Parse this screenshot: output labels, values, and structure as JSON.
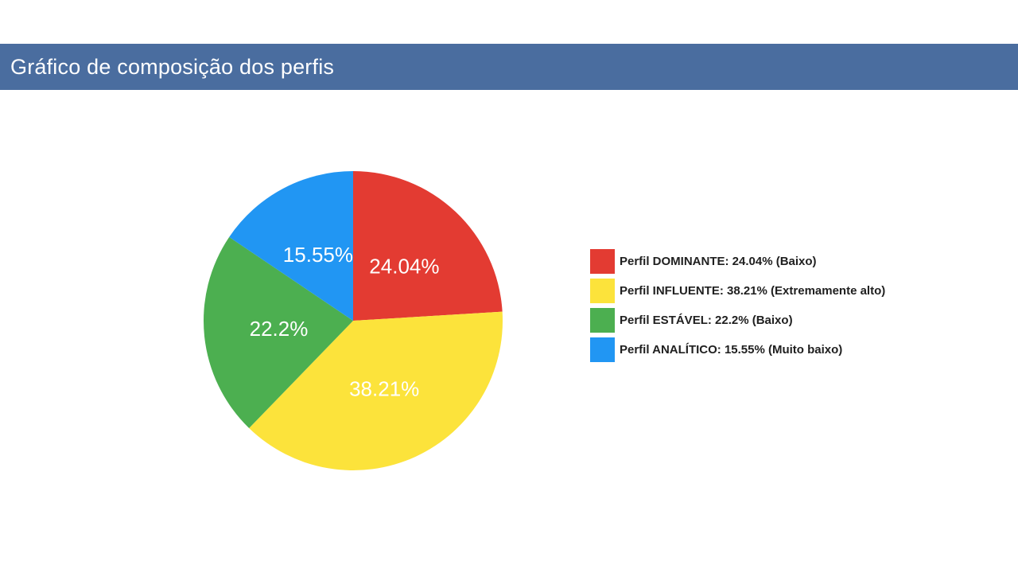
{
  "header": {
    "title": "Gráfico de composição dos perfis"
  },
  "chart_data": {
    "type": "pie",
    "start_angle_deg": 0,
    "direction": "clockwise",
    "label_color": "#ffffff",
    "title": "Gráfico de composição dos perfis",
    "legend_position": "right",
    "slices": [
      {
        "label": "Perfil DOMINANTE",
        "value": 24.04,
        "display": "24.04%",
        "level": "Baixo",
        "legend": "Perfil DOMINANTE: 24.04% (Baixo)",
        "color": "#e33b32"
      },
      {
        "label": "Perfil INFLUENTE",
        "value": 38.21,
        "display": "38.21%",
        "level": "Extremamente alto",
        "legend": "Perfil INFLUENTE: 38.21% (Extremamente alto)",
        "color": "#fce33b"
      },
      {
        "label": "Perfil ESTÁVEL",
        "value": 22.2,
        "display": "22.2%",
        "level": "Baixo",
        "legend": "Perfil ESTÁVEL: 22.2% (Baixo)",
        "color": "#4caf50"
      },
      {
        "label": "Perfil ANALÍTICO",
        "value": 15.55,
        "display": "15.55%",
        "level": "Muito baixo",
        "legend": "Perfil ANALÍTICO: 15.55% (Muito baixo)",
        "color": "#2196f3"
      }
    ]
  }
}
